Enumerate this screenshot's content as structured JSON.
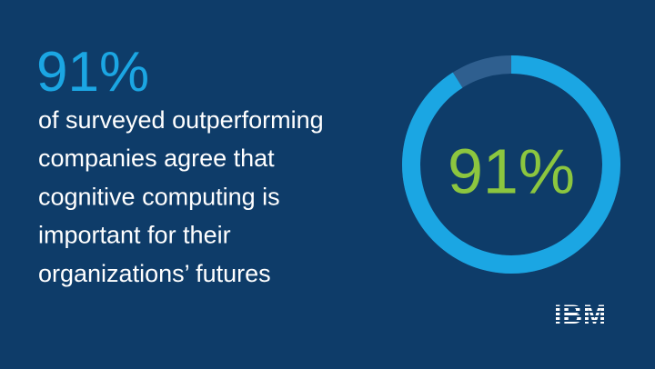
{
  "chart_data": {
    "type": "donut",
    "headline": "91%",
    "text_lines": [
      "of surveyed outperforming",
      "companies agree that",
      "cognitive computing is",
      "important for their",
      "organizations’ futures"
    ],
    "values": [
      91
    ],
    "value_labels": [
      "91%"
    ],
    "color": "#1ba6e3",
    "logo": "IBM"
  }
}
